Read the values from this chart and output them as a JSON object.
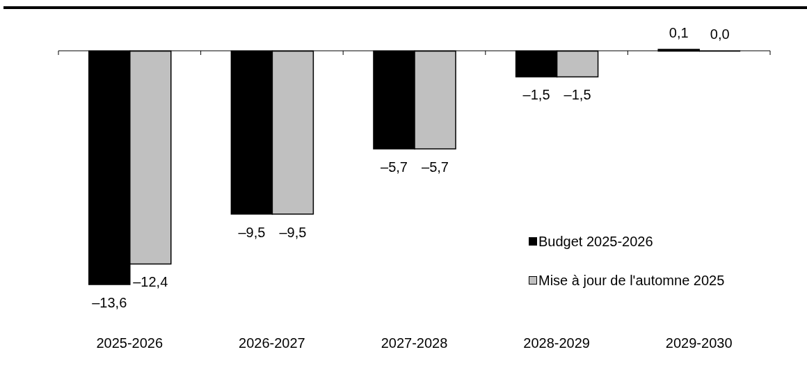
{
  "chart_data": {
    "type": "bar",
    "categories": [
      "2025-2026",
      "2026-2027",
      "2027-2028",
      "2028-2029",
      "2029-2030"
    ],
    "series": [
      {
        "name": "Budget 2025-2026",
        "color": "#000000",
        "values": [
          -13.6,
          -9.5,
          -5.7,
          -1.5,
          0.1
        ],
        "value_labels": [
          "–13,6",
          "–9,5",
          "–5,7",
          "–1,5",
          "0,1"
        ]
      },
      {
        "name": "Mise à jour de l'automne 2025",
        "color": "#c0c0c0",
        "values": [
          -12.4,
          -9.5,
          -5.7,
          -1.5,
          0.0
        ],
        "value_labels": [
          "–12,4",
          "–9,5",
          "–5,7",
          "–1,5",
          "0,0"
        ]
      }
    ],
    "tick_labels": "x",
    "legend": "bottom right"
  }
}
